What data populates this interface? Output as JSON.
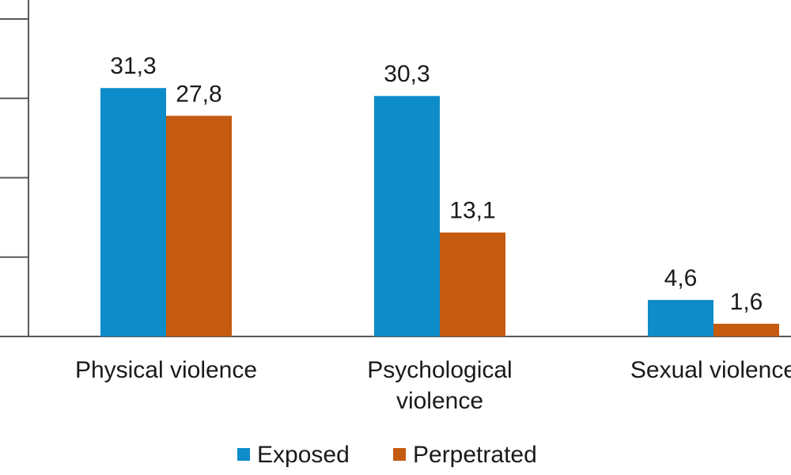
{
  "chart_data": {
    "type": "bar",
    "categories": [
      "Physical violence",
      "Psychological violence",
      "Sexual violence"
    ],
    "category_lines": [
      [
        "Physical violence"
      ],
      [
        "Psychological",
        "violence"
      ],
      [
        "Sexual violence"
      ]
    ],
    "series": [
      {
        "name": "Exposed",
        "values": [
          31.3,
          30.3,
          4.6
        ],
        "labels": [
          "31,3",
          "30,3",
          "4,6"
        ],
        "color": "#0E8CC9"
      },
      {
        "name": "Perpetrated",
        "values": [
          27.8,
          13.1,
          1.6
        ],
        "labels": [
          "27,8",
          "13,1",
          "1,6"
        ],
        "color": "#C55A11"
      }
    ],
    "ylim": [
      0,
      40
    ],
    "yticks": [
      0,
      10,
      20,
      30,
      40
    ],
    "grid": false,
    "legend": "bottom",
    "title": "",
    "xlabel": "",
    "ylabel": ""
  }
}
